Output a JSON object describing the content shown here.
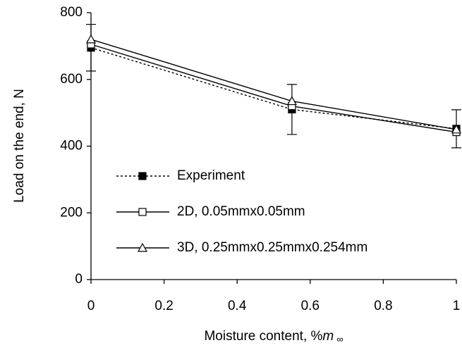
{
  "chart_data": {
    "type": "line",
    "xlabel": "Moisture content, %",
    "xlabel_symbol": "m",
    "xlabel_subscript": "∞",
    "ylabel": "Load on the end, N",
    "xlim": [
      0,
      1
    ],
    "xticks": [
      0,
      0.2,
      0.4,
      0.6,
      0.8,
      1
    ],
    "ylim": [
      0,
      800
    ],
    "yticks": [
      0,
      200,
      400,
      600,
      800
    ],
    "legend": "lower left",
    "grid": false,
    "series": [
      {
        "name": "Experiment",
        "color": "#000000",
        "dash": "dotted",
        "marker": "filled-square",
        "x": [
          0,
          0.55,
          1
        ],
        "values": [
          695,
          510,
          452
        ],
        "errors": [
          70,
          75,
          57
        ]
      },
      {
        "name": "2D, 0.05mmx0.05mm",
        "color": "#000000",
        "dash": "solid",
        "marker": "open-square",
        "x": [
          0,
          0.55,
          1
        ],
        "values": [
          705,
          520,
          442
        ]
      },
      {
        "name": "3D, 0.25mmx0.25mmx0.254mm",
        "color": "#000000",
        "dash": "solid",
        "marker": "open-triangle",
        "x": [
          0,
          0.55,
          1
        ],
        "values": [
          720,
          535,
          450
        ]
      }
    ]
  }
}
